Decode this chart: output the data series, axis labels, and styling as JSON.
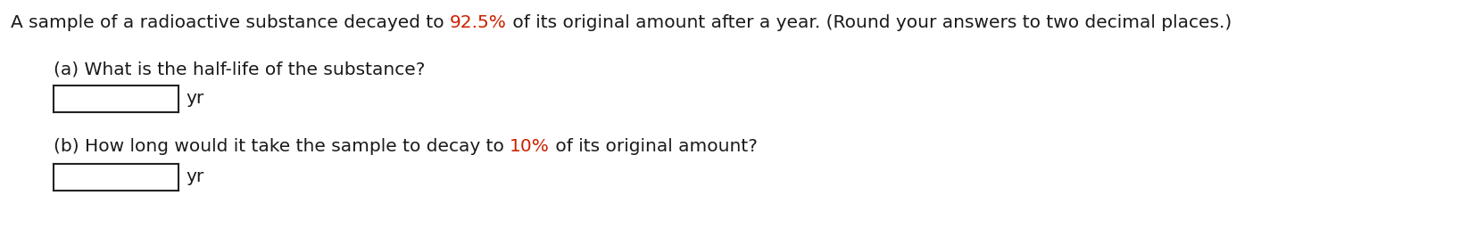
{
  "bg_color": "#ffffff",
  "line1_parts": [
    {
      "text": "A sample of a radioactive substance decayed to ",
      "color": "#1a1a1a"
    },
    {
      "text": "92.5%",
      "color": "#cc2200"
    },
    {
      "text": " of its original amount after a year. (Round your answers to two decimal places.)",
      "color": "#1a1a1a"
    }
  ],
  "part_a_label": "(a) What is the half-life of the substance?",
  "part_a_label_color": "#1a1a1a",
  "part_b_parts": [
    {
      "text": "(b) How long would it take the sample to decay to ",
      "color": "#1a1a1a"
    },
    {
      "text": "10%",
      "color": "#cc2200"
    },
    {
      "text": " of its original amount?",
      "color": "#1a1a1a"
    }
  ],
  "yr_label": "yr",
  "font_size": 14.5,
  "fig_width": 16.36,
  "fig_height": 2.56,
  "dpi": 100
}
